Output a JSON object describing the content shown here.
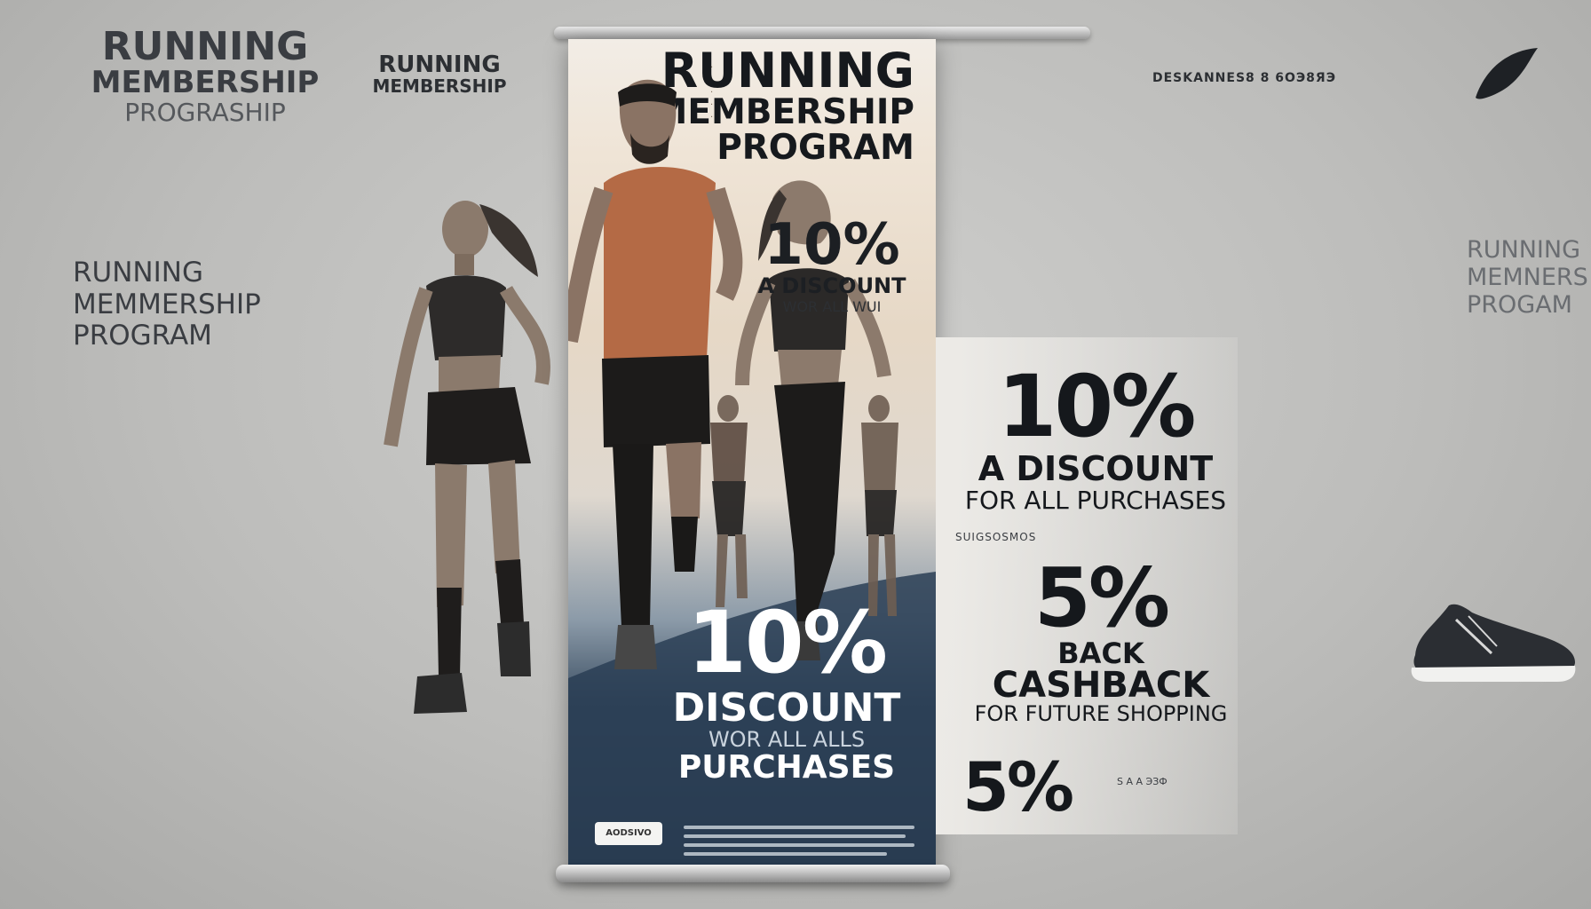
{
  "wall_left_1": [
    "RUNNING",
    "MEMBERSHIP",
    "PROGRASHIP"
  ],
  "wall_left_2": [
    "RUNNING",
    "MEMBERSHIP"
  ],
  "wall_left_3": [
    "RUNNING",
    "MEMMERSHIP",
    "PROGRAM"
  ],
  "wall_right_code": "DESKANNES8 8 6ОЭ8ЯЭ",
  "wall_right_3": [
    "RUNNING",
    "MEMNERS",
    "PROGAM"
  ],
  "banner": {
    "title": [
      "RUNNING",
      "MEMBERSHIP",
      "PROGRAM"
    ],
    "small_offer": {
      "percent": "10%",
      "line1": "A DISCOUNT",
      "line2": "WOR ALL WUI"
    },
    "main_offer": {
      "percent": "10%",
      "line1": "DISCOUNT",
      "line2": "WOR ALL ALLS",
      "line3": "PURCHASES"
    },
    "footer_badge": "AODSIVO"
  },
  "offers": {
    "offer1": {
      "percent": "10%",
      "line1": "A DISCOUNT",
      "line2": "FOR ALL PURCHASES"
    },
    "fine_print": "SUIGSOSMOS",
    "offer2": {
      "percent": "5%",
      "line0": "BACK",
      "line1": "CASHBACK",
      "line2": "FOR FUTURE SHOPPING"
    },
    "offer3": {
      "percent": "5%",
      "fine": "S A A ЭЗФ"
    }
  },
  "colors": {
    "banner_dark": "#1f2c3c",
    "banner_light": "#efe4d6",
    "wall": "#bdbdbb",
    "tank_top": "#b46a45"
  },
  "icons": [
    "leaf-logo-icon",
    "running-shoe-icon"
  ]
}
